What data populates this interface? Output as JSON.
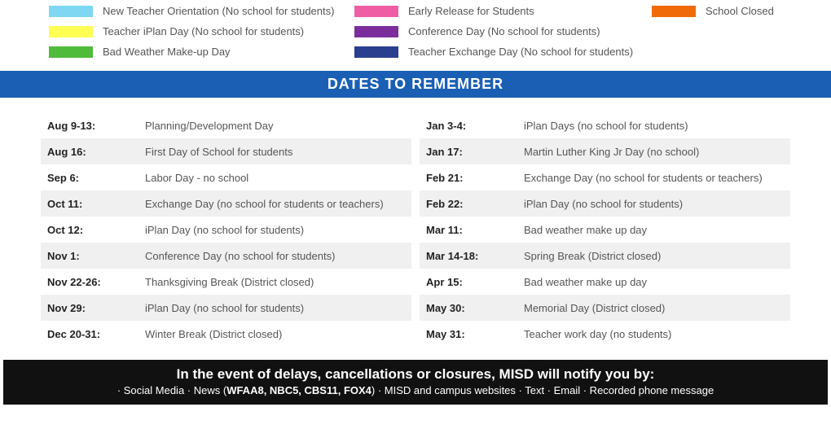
{
  "legend": {
    "col1": [
      {
        "color": "#7fd7f2",
        "label": "New Teacher Orientation (No school for students)"
      },
      {
        "color": "#ffff54",
        "label": "Teacher iPlan Day (No school for students)"
      },
      {
        "color": "#4fbb3b",
        "label": "Bad Weather Make-up Day"
      }
    ],
    "col2": [
      {
        "color": "#ef5ea4",
        "label": "Early Release for Students"
      },
      {
        "color": "#7b2d9b",
        "label": "Conference Day (No school for students)"
      },
      {
        "color": "#2b3f8f",
        "label": "Teacher Exchange Day (No school for students)"
      }
    ],
    "col3": [
      {
        "color": "#f06a0a",
        "label": "School Closed"
      }
    ]
  },
  "header": "DATES TO REMEMBER",
  "dates_left": [
    {
      "date": "Aug 9-13:",
      "desc": "Planning/Development Day"
    },
    {
      "date": "Aug 16:",
      "desc": "First Day of School for students"
    },
    {
      "date": "Sep 6:",
      "desc": "Labor Day - no school"
    },
    {
      "date": "Oct 11:",
      "desc": "Exchange Day (no school for students or teachers)"
    },
    {
      "date": "Oct 12:",
      "desc": "iPlan Day (no school for students)"
    },
    {
      "date": "Nov 1:",
      "desc": "Conference Day (no school for students)"
    },
    {
      "date": "Nov 22-26:",
      "desc": "Thanksgiving Break (District closed)"
    },
    {
      "date": "Nov 29:",
      "desc": "iPlan Day (no school for students)"
    },
    {
      "date": "Dec 20-31:",
      "desc": "Winter Break (District closed)"
    }
  ],
  "dates_right": [
    {
      "date": "Jan 3-4:",
      "desc": "iPlan Days (no school for students)"
    },
    {
      "date": "Jan 17:",
      "desc": "Martin Luther King Jr Day (no school)"
    },
    {
      "date": "Feb 21:",
      "desc": "Exchange Day (no school for students or teachers)"
    },
    {
      "date": "Feb 22:",
      "desc": "iPlan Day (no school for students)"
    },
    {
      "date": "Mar 11:",
      "desc": "Bad weather make up day"
    },
    {
      "date": "Mar 14-18:",
      "desc": "Spring Break (District closed)"
    },
    {
      "date": "Apr 15:",
      "desc": "Bad weather make up day"
    },
    {
      "date": "May 30:",
      "desc": "Memorial Day (District closed)"
    },
    {
      "date": "May 31:",
      "desc": "Teacher work day (no students)"
    }
  ],
  "footer": {
    "line1": "In the event of delays, cancellations or closures, MISD will notify you by:",
    "line2_prefix": "· Social Media · News (",
    "line2_bold": "WFAA8, NBC5, CBS11, FOX4",
    "line2_suffix": ") · MISD and campus websites · Text · Email · Recorded phone message"
  },
  "colors": {
    "header_bg": "#1a5fb4",
    "shade_bg": "#f0f0f0",
    "footer_bg": "#111111"
  }
}
